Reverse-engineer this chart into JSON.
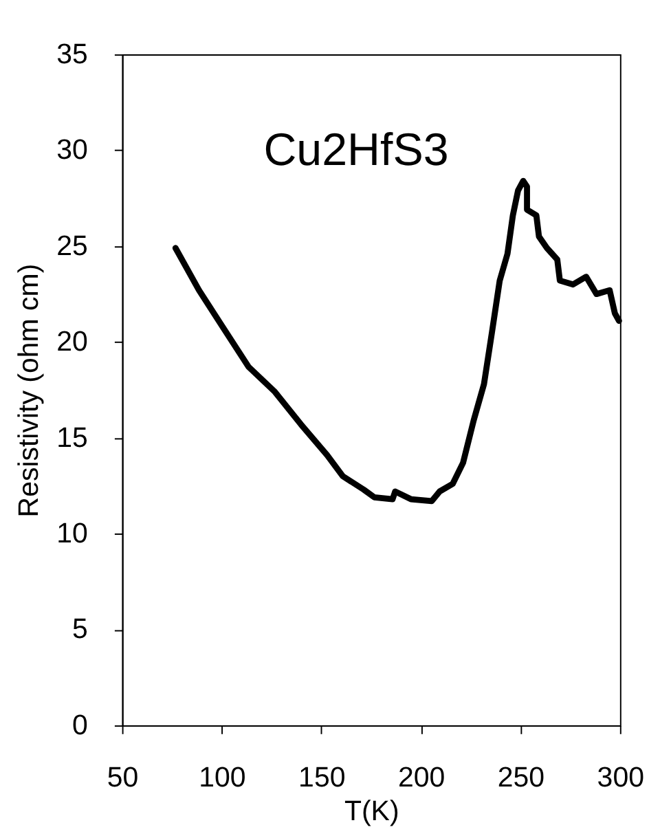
{
  "chart_data": {
    "type": "line",
    "xlabel": "T(K)",
    "ylabel": "Resistivity (ohm cm)",
    "annotations": [
      "Cu2HfS3"
    ],
    "x": [
      76.8,
      88.6,
      100.4,
      113.5,
      126.7,
      139.8,
      152.9,
      160.8,
      171.3,
      176.6,
      185.8,
      187.1,
      195,
      205.5,
      209.4,
      216,
      221.2,
      226.5,
      231.7,
      235.7,
      239.6,
      243.5,
      246.2,
      248.8,
      251.4,
      253.3,
      253.3,
      258,
      259.3,
      263.3,
      268.5,
      269.8,
      276.4,
      283,
      288.2,
      294.8,
      297.4,
      299.5
    ],
    "series": [
      {
        "color": "#000000",
        "values": [
          24.9,
          22.7,
          20.8,
          18.7,
          17.4,
          15.7,
          14.1,
          13.0,
          12.3,
          11.9,
          11.8,
          12.2,
          11.8,
          11.7,
          12.2,
          12.6,
          13.7,
          15.9,
          17.8,
          20.5,
          23.2,
          24.6,
          26.6,
          27.9,
          28.4,
          28.1,
          26.9,
          26.6,
          25.5,
          24.9,
          24.3,
          23.2,
          23.0,
          23.4,
          22.5,
          22.7,
          21.5,
          21.1
        ]
      }
    ],
    "xlim": [
      50,
      300
    ],
    "xticks": [
      50,
      100,
      150,
      200,
      250,
      300
    ],
    "ylim": [
      0,
      35
    ],
    "yticks": [
      0,
      5,
      10,
      15,
      20,
      25,
      30,
      35
    ],
    "grid": false,
    "marker": "none",
    "line_style": "solid"
  }
}
